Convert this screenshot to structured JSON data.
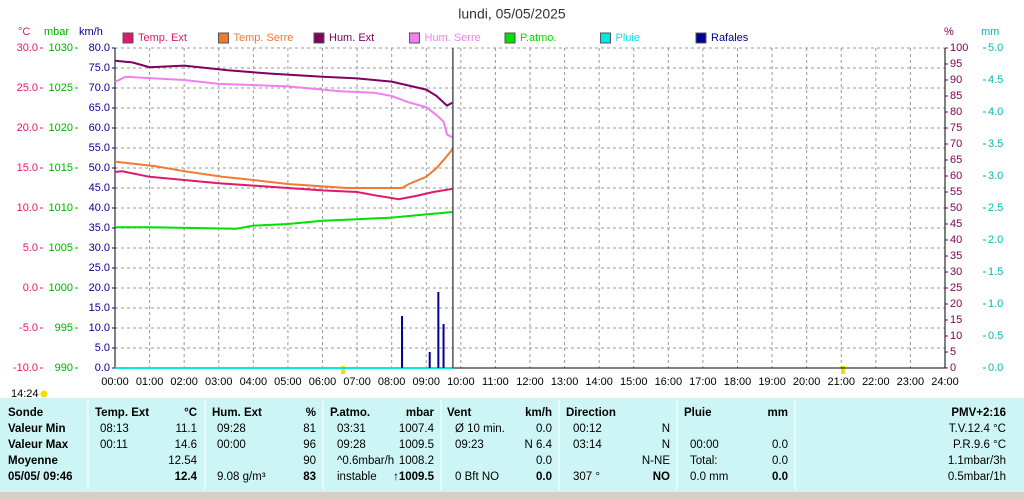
{
  "chart_data": {
    "type": "line",
    "title": "lundi, 05/05/2025",
    "cursor_time": "14:24",
    "ylabel": "°C",
    "y2label": "mbar",
    "y3label": "km/h",
    "y4label": "%",
    "y5label": "mm",
    "xlim": [
      0,
      24
    ],
    "xticks": [
      {
        "value": 0,
        "label": "00:00"
      },
      {
        "value": 1,
        "label": "01:00"
      },
      {
        "value": 2,
        "label": "02:00"
      },
      {
        "value": 3,
        "label": "03:00"
      },
      {
        "value": 4,
        "label": "04:00"
      },
      {
        "value": 5,
        "label": "05:00"
      },
      {
        "value": 6,
        "label": "06:00"
      },
      {
        "value": 7,
        "label": "07:00"
      },
      {
        "value": 8,
        "label": "08:00"
      },
      {
        "value": 9,
        "label": "09:00"
      },
      {
        "value": 10,
        "label": "10:00"
      },
      {
        "value": 11,
        "label": "11:00"
      },
      {
        "value": 12,
        "label": "12:00"
      },
      {
        "value": 13,
        "label": "13:00"
      },
      {
        "value": 14,
        "label": "14:00"
      },
      {
        "value": 15,
        "label": "15:00"
      },
      {
        "value": 16,
        "label": "16:00"
      },
      {
        "value": 17,
        "label": "17:00"
      },
      {
        "value": 18,
        "label": "18:00"
      },
      {
        "value": 19,
        "label": "19:00"
      },
      {
        "value": 20,
        "label": "20:00"
      },
      {
        "value": 21,
        "label": "21:00"
      },
      {
        "value": 22,
        "label": "22:00"
      },
      {
        "value": 23,
        "label": "23:00"
      },
      {
        "value": 24,
        "label": "24:00"
      }
    ],
    "ylim": [
      -10,
      30
    ],
    "yticks": [
      {
        "value": -10,
        "label": "-10.0"
      },
      {
        "value": -5,
        "label": "-5.0"
      },
      {
        "value": 0,
        "label": "0.0"
      },
      {
        "value": 5,
        "label": "5.0"
      },
      {
        "value": 10,
        "label": "10.0"
      },
      {
        "value": 15,
        "label": "15.0"
      },
      {
        "value": 20,
        "label": "20.0"
      },
      {
        "value": 25,
        "label": "25.0"
      },
      {
        "value": 30,
        "label": "30.0"
      }
    ],
    "y2lim": [
      990,
      1030
    ],
    "y2ticks": [
      990,
      995,
      1000,
      1005,
      1010,
      1015,
      1020,
      1025,
      1030
    ],
    "y3lim": [
      0,
      80
    ],
    "y3ticks": [
      {
        "value": 0,
        "label": "0.0"
      },
      {
        "value": 5,
        "label": "5.0"
      },
      {
        "value": 10,
        "label": "10.0"
      },
      {
        "value": 15,
        "label": "15.0"
      },
      {
        "value": 20,
        "label": "20.0"
      },
      {
        "value": 25,
        "label": "25.0"
      },
      {
        "value": 30,
        "label": "30.0"
      },
      {
        "value": 35,
        "label": "35.0"
      },
      {
        "value": 40,
        "label": "40.0"
      },
      {
        "value": 45,
        "label": "45.0"
      },
      {
        "value": 50,
        "label": "50.0"
      },
      {
        "value": 55,
        "label": "55.0"
      },
      {
        "value": 60,
        "label": "60.0"
      },
      {
        "value": 65,
        "label": "65.0"
      },
      {
        "value": 70,
        "label": "70.0"
      },
      {
        "value": 75,
        "label": "75.0"
      },
      {
        "value": 80,
        "label": "80.0"
      }
    ],
    "y4lim": [
      0,
      100
    ],
    "y4ticks": [
      0,
      5,
      10,
      15,
      20,
      25,
      30,
      35,
      40,
      45,
      50,
      55,
      60,
      65,
      70,
      75,
      80,
      85,
      90,
      95,
      100
    ],
    "y5lim": [
      0,
      5
    ],
    "y5ticks": [
      {
        "value": 0,
        "label": "0.0"
      },
      {
        "value": 0.5,
        "label": "0.5"
      },
      {
        "value": 1,
        "label": "1.0"
      },
      {
        "value": 1.5,
        "label": "1.5"
      },
      {
        "value": 2,
        "label": "2.0"
      },
      {
        "value": 2.5,
        "label": "2.5"
      },
      {
        "value": 3,
        "label": "3.0"
      },
      {
        "value": 3.5,
        "label": "3.5"
      },
      {
        "value": 4,
        "label": "4.0"
      },
      {
        "value": 4.5,
        "label": "4.5"
      },
      {
        "value": 5,
        "label": "5.0"
      }
    ],
    "grid": true,
    "series": [
      {
        "name": "Temp. Ext",
        "color": "#e0186c",
        "axis": "y",
        "x": [
          0,
          0.2,
          1,
          2,
          3,
          4,
          5,
          6,
          7,
          7.5,
          8.2,
          8.7,
          9.2,
          9.77
        ],
        "values": [
          14.5,
          14.6,
          13.9,
          13.5,
          13.1,
          12.8,
          12.5,
          12.2,
          12.0,
          11.6,
          11.1,
          11.5,
          12.0,
          12.4
        ]
      },
      {
        "name": "Temp. Serre",
        "color": "#f07a30",
        "axis": "y",
        "x": [
          0,
          1.2,
          2,
          3.1,
          4,
          5,
          6.7,
          8.3,
          8.5,
          9,
          9.3,
          9.6,
          9.77
        ],
        "values": [
          15.8,
          15.2,
          14.6,
          13.9,
          13.5,
          13.0,
          12.5,
          12.5,
          13.0,
          13.9,
          15.0,
          16.5,
          17.4
        ]
      },
      {
        "name": "Hum. Ext",
        "color": "#800060",
        "axis": "y4",
        "x": [
          0,
          0.5,
          1,
          2,
          3.3,
          4.5,
          6,
          7,
          8,
          9,
          9.3,
          9.6,
          9.77
        ],
        "values": [
          96,
          95.5,
          94,
          94.5,
          93,
          92,
          91,
          90.5,
          89.5,
          87,
          85,
          82,
          83
        ]
      },
      {
        "name": "Hum. Serre",
        "color": "#f080f0",
        "axis": "y4",
        "x": [
          0,
          0.3,
          2,
          3,
          5,
          6.5,
          7.5,
          8,
          8.5,
          9,
          9.3,
          9.5,
          9.6,
          9.77
        ],
        "values": [
          89.4,
          91,
          90,
          88.8,
          88,
          86.5,
          86,
          85,
          83,
          81.5,
          79,
          77,
          73,
          72
        ]
      },
      {
        "name": "P.atmo.",
        "color": "#00e000",
        "axis": "y2",
        "x": [
          0,
          1,
          3.5,
          4,
          5,
          6,
          7,
          8,
          9,
          9.77
        ],
        "values": [
          1007.6,
          1007.6,
          1007.4,
          1007.8,
          1008.0,
          1008.4,
          1008.6,
          1008.8,
          1009.2,
          1009.5
        ]
      },
      {
        "name": "Pluie",
        "color": "#00e8e8",
        "axis": "y5",
        "x": [
          0,
          9.77
        ],
        "values": [
          0,
          0
        ]
      },
      {
        "name": "Rafales",
        "color": "#000090",
        "axis": "y3",
        "type": "bar",
        "x": [
          8.3,
          9.1,
          9.35,
          9.5
        ],
        "values": [
          13,
          4,
          19,
          11
        ]
      }
    ]
  },
  "table": {
    "rows": [
      [
        "Sonde",
        "Temp. Ext",
        "°C",
        "Hum. Ext",
        "%",
        "P.atmo.",
        "mbar",
        "Vent",
        "km/h",
        "Direction",
        null,
        "Pluie",
        "mm",
        "PMV+2:16"
      ],
      [
        "Valeur Min",
        "08:13",
        "11.1",
        "09:28",
        "81",
        "03:31",
        "1007.4",
        "Ø 10 min.",
        "0.0",
        "00:12",
        "N",
        null,
        null,
        "T.V.12.4 °C"
      ],
      [
        "Valeur Max",
        "00:11",
        "14.6",
        "00:00",
        "96",
        "09:28",
        "1009.5",
        "09:23",
        "N 6.4",
        "03:14",
        "N",
        "00:00",
        "0.0",
        "P.R.9.6 °C"
      ],
      [
        "Moyenne",
        null,
        "12.54",
        null,
        "90",
        "^0.6mbar/h",
        "1008.2",
        null,
        "0.0",
        null,
        "N-NE",
        "Total:",
        "0.0",
        "1.1mbar/3h"
      ],
      [
        "05/05/ 09:46",
        null,
        "12.4",
        "9.08 g/m³",
        "83",
        "instable",
        "↑1009.5",
        "0 Bft NO",
        "0.0",
        "307 °",
        "NO",
        "0.0 mm",
        "0.0",
        "0.5mbar/1h"
      ]
    ]
  }
}
